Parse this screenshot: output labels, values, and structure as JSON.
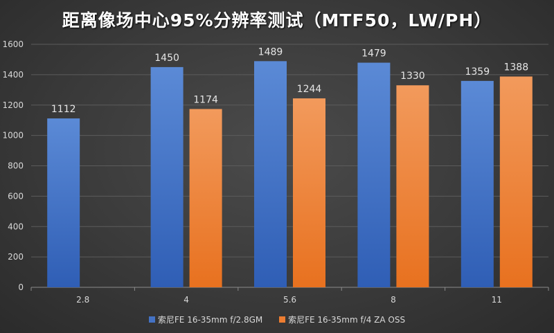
{
  "chart_data": {
    "type": "bar",
    "title": "距离像场中心95%分辨率测试（MTF50，LW/PH）",
    "xlabel": "",
    "ylabel": "",
    "ylim": [
      0,
      1600
    ],
    "yticks": [
      0,
      200,
      400,
      600,
      800,
      1000,
      1200,
      1400,
      1600
    ],
    "categories": [
      "2.8",
      "4",
      "5.6",
      "8",
      "11"
    ],
    "grid": true,
    "legend_position": "bottom",
    "series": [
      {
        "name": "索尼FE 16-35mm f/2.8GM",
        "color": "#4472c4",
        "values": [
          1112,
          1450,
          1489,
          1479,
          1359
        ]
      },
      {
        "name": "索尼FE 16-35mm f/4 ZA OSS",
        "color": "#ed7d31",
        "values": [
          null,
          1174,
          1244,
          1330,
          1388
        ]
      }
    ]
  }
}
